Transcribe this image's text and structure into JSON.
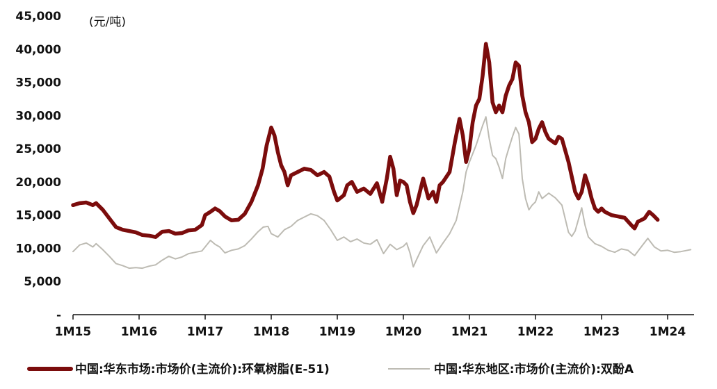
{
  "chart_data": {
    "type": "line",
    "unit_label": "(元/吨)",
    "ylim": [
      0,
      45000
    ],
    "y_ticks": [
      {
        "value": 45000,
        "label": "45,000"
      },
      {
        "value": 40000,
        "label": "40,000"
      },
      {
        "value": 35000,
        "label": "35,000"
      },
      {
        "value": 30000,
        "label": "30,000"
      },
      {
        "value": 25000,
        "label": "25,000"
      },
      {
        "value": 20000,
        "label": "20,000"
      },
      {
        "value": 15000,
        "label": "15,000"
      },
      {
        "value": 10000,
        "label": "10,000"
      },
      {
        "value": 5000,
        "label": "5,000"
      },
      {
        "value": 0,
        "label": "-"
      }
    ],
    "x_ticks": [
      {
        "value": 2015.0,
        "label": "1M15"
      },
      {
        "value": 2016.0,
        "label": "1M16"
      },
      {
        "value": 2017.0,
        "label": "1M17"
      },
      {
        "value": 2018.0,
        "label": "1M18"
      },
      {
        "value": 2019.0,
        "label": "1M19"
      },
      {
        "value": 2020.0,
        "label": "1M20"
      },
      {
        "value": 2021.0,
        "label": "1M21"
      },
      {
        "value": 2022.0,
        "label": "1M22"
      },
      {
        "value": 2023.0,
        "label": "1M23"
      },
      {
        "value": 2024.0,
        "label": "1M24"
      }
    ],
    "xlim": [
      2015.0,
      2024.4
    ],
    "grid": false,
    "legend_position": "bottom",
    "series": [
      {
        "name": "中国:华东市场:市场价(主流价):环氧树脂(E-51)",
        "color": "#7b0c0c",
        "points": [
          [
            2015.0,
            16500
          ],
          [
            2015.1,
            16800
          ],
          [
            2015.2,
            16900
          ],
          [
            2015.3,
            16500
          ],
          [
            2015.35,
            16800
          ],
          [
            2015.45,
            15800
          ],
          [
            2015.55,
            14500
          ],
          [
            2015.65,
            13200
          ],
          [
            2015.75,
            12800
          ],
          [
            2015.85,
            12600
          ],
          [
            2015.95,
            12400
          ],
          [
            2016.05,
            12000
          ],
          [
            2016.15,
            11900
          ],
          [
            2016.25,
            11700
          ],
          [
            2016.35,
            12500
          ],
          [
            2016.45,
            12600
          ],
          [
            2016.55,
            12200
          ],
          [
            2016.65,
            12300
          ],
          [
            2016.75,
            12700
          ],
          [
            2016.85,
            12800
          ],
          [
            2016.95,
            13500
          ],
          [
            2017.0,
            15000
          ],
          [
            2017.08,
            15500
          ],
          [
            2017.15,
            16000
          ],
          [
            2017.22,
            15600
          ],
          [
            2017.3,
            14800
          ],
          [
            2017.4,
            14200
          ],
          [
            2017.5,
            14300
          ],
          [
            2017.6,
            15200
          ],
          [
            2017.7,
            17000
          ],
          [
            2017.8,
            19500
          ],
          [
            2017.87,
            22000
          ],
          [
            2017.93,
            25500
          ],
          [
            2018.0,
            28200
          ],
          [
            2018.05,
            27000
          ],
          [
            2018.1,
            24500
          ],
          [
            2018.15,
            22500
          ],
          [
            2018.2,
            21500
          ],
          [
            2018.25,
            19500
          ],
          [
            2018.3,
            21000
          ],
          [
            2018.4,
            21500
          ],
          [
            2018.5,
            22000
          ],
          [
            2018.6,
            21800
          ],
          [
            2018.7,
            21000
          ],
          [
            2018.8,
            21500
          ],
          [
            2018.88,
            20800
          ],
          [
            2018.95,
            18500
          ],
          [
            2019.0,
            17200
          ],
          [
            2019.1,
            18000
          ],
          [
            2019.15,
            19500
          ],
          [
            2019.22,
            20000
          ],
          [
            2019.3,
            18500
          ],
          [
            2019.4,
            19000
          ],
          [
            2019.5,
            18200
          ],
          [
            2019.6,
            19800
          ],
          [
            2019.68,
            17000
          ],
          [
            2019.75,
            20500
          ],
          [
            2019.8,
            23800
          ],
          [
            2019.85,
            22000
          ],
          [
            2019.9,
            18000
          ],
          [
            2019.95,
            20200
          ],
          [
            2020.0,
            20000
          ],
          [
            2020.05,
            19500
          ],
          [
            2020.1,
            17000
          ],
          [
            2020.15,
            15300
          ],
          [
            2020.2,
            16500
          ],
          [
            2020.3,
            20500
          ],
          [
            2020.38,
            17500
          ],
          [
            2020.45,
            18500
          ],
          [
            2020.5,
            17000
          ],
          [
            2020.55,
            19500
          ],
          [
            2020.6,
            20000
          ],
          [
            2020.7,
            21500
          ],
          [
            2020.78,
            26000
          ],
          [
            2020.85,
            29500
          ],
          [
            2020.9,
            27000
          ],
          [
            2020.95,
            23000
          ],
          [
            2021.0,
            25000
          ],
          [
            2021.05,
            29000
          ],
          [
            2021.1,
            31500
          ],
          [
            2021.15,
            32500
          ],
          [
            2021.2,
            36000
          ],
          [
            2021.25,
            40800
          ],
          [
            2021.3,
            38000
          ],
          [
            2021.35,
            32000
          ],
          [
            2021.4,
            30500
          ],
          [
            2021.45,
            31500
          ],
          [
            2021.5,
            30500
          ],
          [
            2021.55,
            33000
          ],
          [
            2021.6,
            34500
          ],
          [
            2021.65,
            35500
          ],
          [
            2021.7,
            38000
          ],
          [
            2021.75,
            37500
          ],
          [
            2021.8,
            33000
          ],
          [
            2021.85,
            30500
          ],
          [
            2021.9,
            29000
          ],
          [
            2021.95,
            26000
          ],
          [
            2022.0,
            26500
          ],
          [
            2022.05,
            28000
          ],
          [
            2022.1,
            29000
          ],
          [
            2022.15,
            27500
          ],
          [
            2022.2,
            26500
          ],
          [
            2022.3,
            25800
          ],
          [
            2022.35,
            26800
          ],
          [
            2022.4,
            26500
          ],
          [
            2022.5,
            23000
          ],
          [
            2022.6,
            18500
          ],
          [
            2022.65,
            17500
          ],
          [
            2022.7,
            18500
          ],
          [
            2022.75,
            21000
          ],
          [
            2022.8,
            19500
          ],
          [
            2022.85,
            17500
          ],
          [
            2022.9,
            16000
          ],
          [
            2022.95,
            15500
          ],
          [
            2023.0,
            16000
          ],
          [
            2023.05,
            15500
          ],
          [
            2023.15,
            15000
          ],
          [
            2023.25,
            14800
          ],
          [
            2023.35,
            14600
          ],
          [
            2023.45,
            13500
          ],
          [
            2023.5,
            13000
          ],
          [
            2023.55,
            14000
          ],
          [
            2023.65,
            14500
          ],
          [
            2023.72,
            15500
          ],
          [
            2023.78,
            15000
          ],
          [
            2023.85,
            14300
          ]
        ]
      },
      {
        "name": "中国:华东地区:市场价(主流价):双酚A",
        "color": "#bdbbb3",
        "points": [
          [
            2015.0,
            9500
          ],
          [
            2015.1,
            10500
          ],
          [
            2015.2,
            10800
          ],
          [
            2015.3,
            10200
          ],
          [
            2015.35,
            10700
          ],
          [
            2015.45,
            9800
          ],
          [
            2015.55,
            8800
          ],
          [
            2015.65,
            7700
          ],
          [
            2015.75,
            7400
          ],
          [
            2015.85,
            7000
          ],
          [
            2015.95,
            7100
          ],
          [
            2016.05,
            7000
          ],
          [
            2016.15,
            7300
          ],
          [
            2016.25,
            7500
          ],
          [
            2016.35,
            8200
          ],
          [
            2016.45,
            8800
          ],
          [
            2016.55,
            8400
          ],
          [
            2016.65,
            8700
          ],
          [
            2016.75,
            9200
          ],
          [
            2016.85,
            9400
          ],
          [
            2016.95,
            9600
          ],
          [
            2017.0,
            10200
          ],
          [
            2017.08,
            11200
          ],
          [
            2017.15,
            10600
          ],
          [
            2017.22,
            10200
          ],
          [
            2017.3,
            9300
          ],
          [
            2017.4,
            9700
          ],
          [
            2017.5,
            9900
          ],
          [
            2017.6,
            10400
          ],
          [
            2017.7,
            11400
          ],
          [
            2017.8,
            12500
          ],
          [
            2017.88,
            13200
          ],
          [
            2017.95,
            13300
          ],
          [
            2018.0,
            12200
          ],
          [
            2018.1,
            11700
          ],
          [
            2018.2,
            12800
          ],
          [
            2018.3,
            13300
          ],
          [
            2018.4,
            14200
          ],
          [
            2018.5,
            14700
          ],
          [
            2018.6,
            15200
          ],
          [
            2018.7,
            14900
          ],
          [
            2018.8,
            14200
          ],
          [
            2018.9,
            12800
          ],
          [
            2019.0,
            11200
          ],
          [
            2019.1,
            11700
          ],
          [
            2019.2,
            11000
          ],
          [
            2019.3,
            11400
          ],
          [
            2019.4,
            10800
          ],
          [
            2019.5,
            10600
          ],
          [
            2019.6,
            11300
          ],
          [
            2019.7,
            9200
          ],
          [
            2019.8,
            10600
          ],
          [
            2019.9,
            9800
          ],
          [
            2020.0,
            10300
          ],
          [
            2020.05,
            10800
          ],
          [
            2020.1,
            9300
          ],
          [
            2020.15,
            7200
          ],
          [
            2020.2,
            8300
          ],
          [
            2020.3,
            10400
          ],
          [
            2020.4,
            11700
          ],
          [
            2020.5,
            9300
          ],
          [
            2020.6,
            10800
          ],
          [
            2020.7,
            12200
          ],
          [
            2020.8,
            14200
          ],
          [
            2020.9,
            18500
          ],
          [
            2020.95,
            21500
          ],
          [
            2021.0,
            23000
          ],
          [
            2021.1,
            25500
          ],
          [
            2021.2,
            28500
          ],
          [
            2021.25,
            29800
          ],
          [
            2021.3,
            26500
          ],
          [
            2021.35,
            24000
          ],
          [
            2021.4,
            23500
          ],
          [
            2021.45,
            22200
          ],
          [
            2021.5,
            20500
          ],
          [
            2021.55,
            23500
          ],
          [
            2021.6,
            25200
          ],
          [
            2021.65,
            26800
          ],
          [
            2021.7,
            28200
          ],
          [
            2021.75,
            27200
          ],
          [
            2021.8,
            20500
          ],
          [
            2021.85,
            17500
          ],
          [
            2021.9,
            15800
          ],
          [
            2021.95,
            16500
          ],
          [
            2022.0,
            17000
          ],
          [
            2022.05,
            18500
          ],
          [
            2022.1,
            17500
          ],
          [
            2022.2,
            18300
          ],
          [
            2022.3,
            17600
          ],
          [
            2022.4,
            16500
          ],
          [
            2022.5,
            12400
          ],
          [
            2022.55,
            11800
          ],
          [
            2022.6,
            12600
          ],
          [
            2022.7,
            16100
          ],
          [
            2022.75,
            13500
          ],
          [
            2022.8,
            11700
          ],
          [
            2022.9,
            10700
          ],
          [
            2023.0,
            10300
          ],
          [
            2023.1,
            9700
          ],
          [
            2023.2,
            9400
          ],
          [
            2023.3,
            9900
          ],
          [
            2023.4,
            9700
          ],
          [
            2023.5,
            8900
          ],
          [
            2023.6,
            10200
          ],
          [
            2023.7,
            11500
          ],
          [
            2023.8,
            10200
          ],
          [
            2023.9,
            9600
          ],
          [
            2024.0,
            9700
          ],
          [
            2024.1,
            9400
          ],
          [
            2024.2,
            9500
          ],
          [
            2024.3,
            9700
          ],
          [
            2024.35,
            9800
          ]
        ]
      }
    ]
  }
}
